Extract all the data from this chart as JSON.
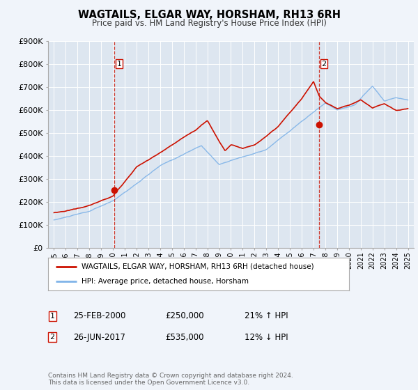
{
  "title": "WAGTAILS, ELGAR WAY, HORSHAM, RH13 6RH",
  "subtitle": "Price paid vs. HM Land Registry's House Price Index (HPI)",
  "bg_color": "#f0f4fa",
  "plot_bg_color": "#dde6f0",
  "grid_color": "#ffffff",
  "hpi_color": "#7fb3e8",
  "price_color": "#cc1100",
  "marker1_x": 2000.12,
  "marker1_y": 250000,
  "marker2_x": 2017.48,
  "marker2_y": 535000,
  "vline1_x": 2000.12,
  "vline2_x": 2017.48,
  "ylim": [
    0,
    900000
  ],
  "xlim": [
    1994.5,
    2025.5
  ],
  "legend_label_price": "WAGTAILS, ELGAR WAY, HORSHAM, RH13 6RH (detached house)",
  "legend_label_hpi": "HPI: Average price, detached house, Horsham",
  "table_rows": [
    {
      "num": "1",
      "date": "25-FEB-2000",
      "price": "£250,000",
      "hpi": "21% ↑ HPI"
    },
    {
      "num": "2",
      "date": "26-JUN-2017",
      "price": "£535,000",
      "hpi": "12% ↓ HPI"
    }
  ],
  "footer": "Contains HM Land Registry data © Crown copyright and database right 2024.\nThis data is licensed under the Open Government Licence v3.0.",
  "ytick_labels": [
    "£0",
    "£100K",
    "£200K",
    "£300K",
    "£400K",
    "£500K",
    "£600K",
    "£700K",
    "£800K",
    "£900K"
  ],
  "ytick_values": [
    0,
    100000,
    200000,
    300000,
    400000,
    500000,
    600000,
    700000,
    800000,
    900000
  ]
}
